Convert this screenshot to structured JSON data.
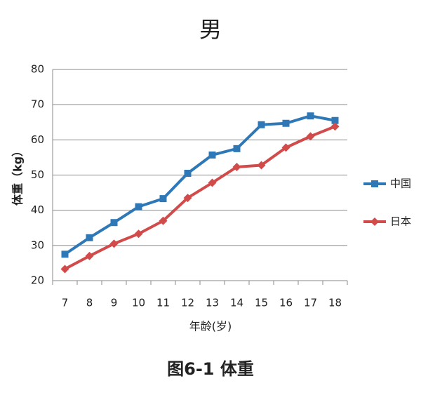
{
  "chart_data": {
    "type": "line",
    "title": "男",
    "caption": "图6-1 体重",
    "y_label": "体重（kg）",
    "x_label": "年龄(岁)",
    "categories": [
      "7",
      "8",
      "9",
      "10",
      "11",
      "12",
      "13",
      "14",
      "15",
      "16",
      "17",
      "18"
    ],
    "series": [
      {
        "name": "中国",
        "color": "#2e78b7",
        "marker": "square",
        "values": [
          27.5,
          32.2,
          36.5,
          41,
          43.3,
          50.5,
          55.7,
          57.5,
          64.3,
          64.7,
          66.8,
          65.5
        ]
      },
      {
        "name": "日本",
        "color": "#d24b4b",
        "marker": "diamond",
        "values": [
          23.3,
          27,
          30.5,
          33.3,
          37,
          43.5,
          47.8,
          52.3,
          52.8,
          57.8,
          61,
          63.8
        ]
      }
    ],
    "ylim": [
      20,
      80
    ],
    "yticks": [
      20,
      30,
      40,
      50,
      60,
      70,
      80
    ],
    "grid": true
  }
}
